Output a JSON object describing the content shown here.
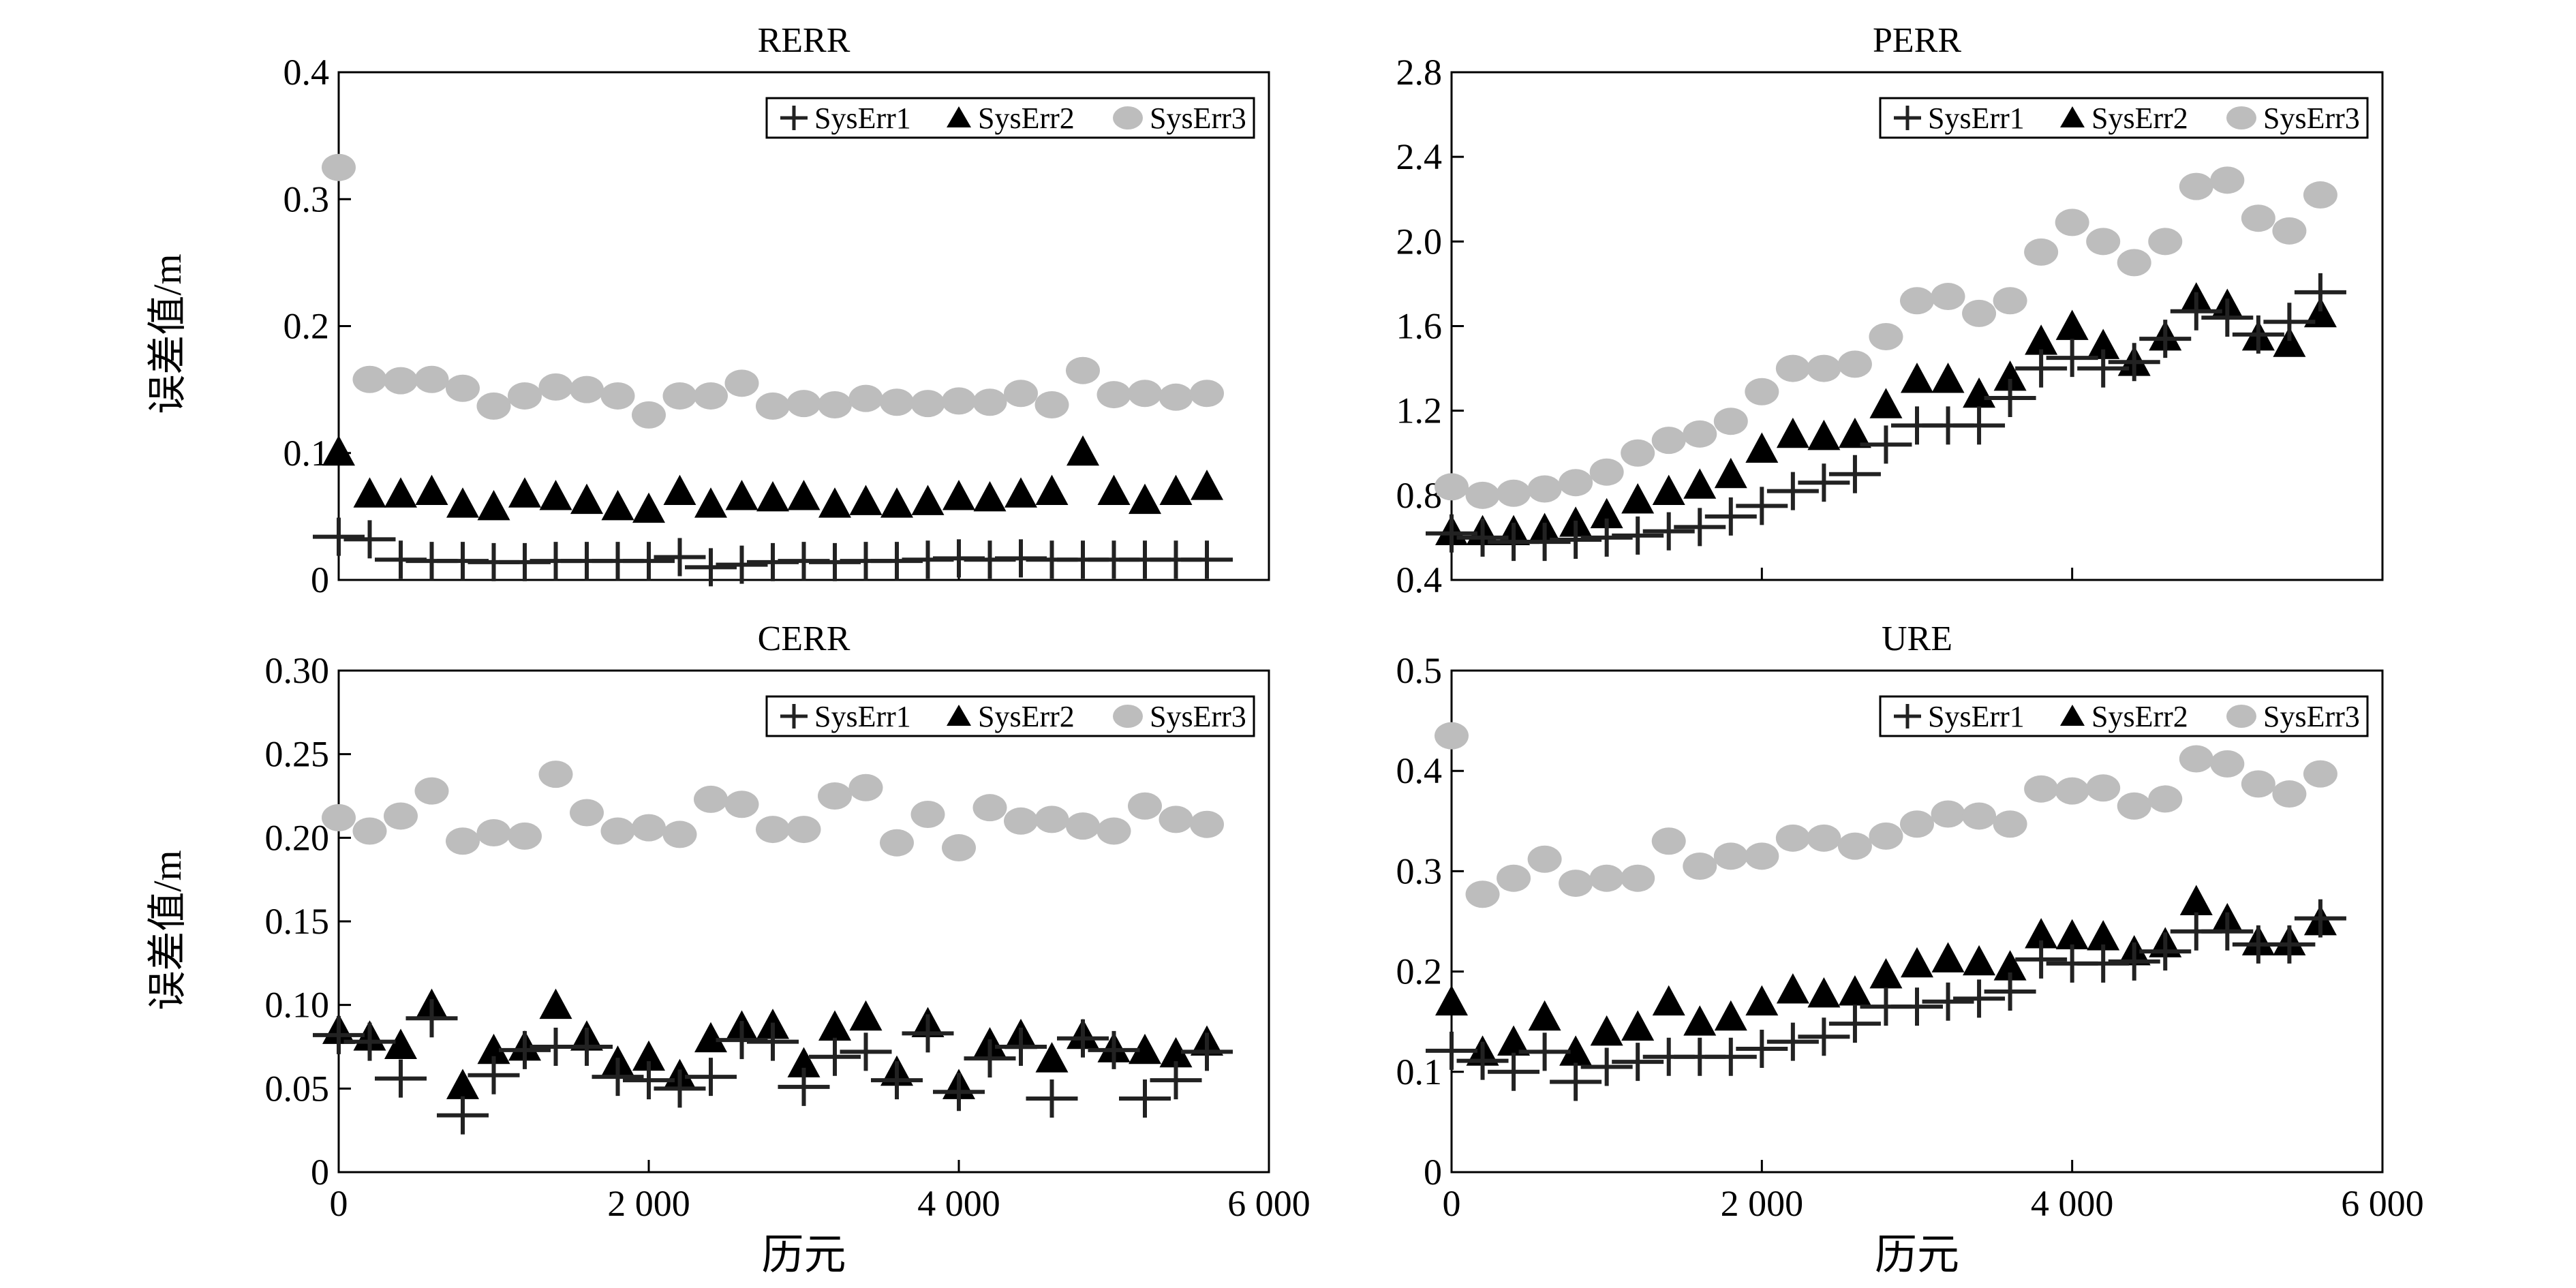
{
  "figure": {
    "ylabel": "误差值/m",
    "xlabel": "历元",
    "colors": {
      "sys1": "#222222",
      "sys2": "#000000",
      "sys3": "#bdbdbd"
    }
  },
  "chart_data": [
    {
      "id": "rerr",
      "type": "scatter",
      "title": "RERR",
      "xlabel": "",
      "ylabel": "误差值/m",
      "xlim": [
        0,
        6000
      ],
      "ylim": [
        0,
        0.4
      ],
      "xticks": [
        0,
        2000,
        4000,
        6000
      ],
      "xtick_labels": [
        "",
        "",
        "",
        ""
      ],
      "yticks": [
        0,
        0.1,
        0.2,
        0.3,
        0.4
      ],
      "ytick_labels": [
        "0",
        "0.1",
        "0.2",
        "0.3",
        "0.4"
      ],
      "legend": [
        "SysErr1",
        "SysErr2",
        "SysErr3"
      ],
      "x": [
        0,
        200,
        400,
        600,
        800,
        1000,
        1200,
        1400,
        1600,
        1800,
        2000,
        2200,
        2400,
        2600,
        2800,
        3000,
        3200,
        3400,
        3600,
        3800,
        4000,
        4200,
        4400,
        4600,
        4800,
        5000,
        5200,
        5400,
        5600
      ],
      "series": [
        {
          "name": "SysErr1",
          "marker": "plus",
          "values": [
            0.034,
            0.032,
            0.016,
            0.015,
            0.015,
            0.014,
            0.014,
            0.015,
            0.015,
            0.015,
            0.015,
            0.018,
            0.01,
            0.012,
            0.014,
            0.015,
            0.014,
            0.015,
            0.015,
            0.016,
            0.017,
            0.016,
            0.017,
            0.016,
            0.016,
            0.016,
            0.016,
            0.016,
            0.016
          ]
        },
        {
          "name": "SysErr2",
          "marker": "triangle",
          "values": [
            0.101,
            0.068,
            0.068,
            0.07,
            0.06,
            0.058,
            0.068,
            0.066,
            0.063,
            0.058,
            0.056,
            0.07,
            0.06,
            0.066,
            0.065,
            0.066,
            0.06,
            0.062,
            0.06,
            0.062,
            0.066,
            0.065,
            0.068,
            0.07,
            0.101,
            0.07,
            0.063,
            0.07,
            0.074
          ]
        },
        {
          "name": "SysErr3",
          "marker": "circle",
          "values": [
            0.325,
            0.158,
            0.157,
            0.158,
            0.151,
            0.137,
            0.145,
            0.152,
            0.15,
            0.145,
            0.13,
            0.145,
            0.145,
            0.155,
            0.137,
            0.139,
            0.138,
            0.143,
            0.14,
            0.139,
            0.141,
            0.14,
            0.147,
            0.138,
            0.165,
            0.146,
            0.147,
            0.144,
            0.147
          ]
        }
      ]
    },
    {
      "id": "perr",
      "type": "scatter",
      "title": "PERR",
      "xlabel": "",
      "ylabel": "",
      "xlim": [
        0,
        6000
      ],
      "ylim": [
        0.4,
        2.8
      ],
      "xticks": [
        0,
        2000,
        4000,
        6000
      ],
      "xtick_labels": [
        "",
        "",
        "",
        ""
      ],
      "yticks": [
        0.4,
        0.8,
        1.2,
        1.6,
        2.0,
        2.4,
        2.8
      ],
      "ytick_labels": [
        "0.4",
        "0.8",
        "1.2",
        "1.6",
        "2.0",
        "2.4",
        "2.8"
      ],
      "legend": [
        "SysErr1",
        "SysErr2",
        "SysErr3"
      ],
      "x": [
        0,
        200,
        400,
        600,
        800,
        1000,
        1200,
        1400,
        1600,
        1800,
        2000,
        2200,
        2400,
        2600,
        2800,
        3000,
        3200,
        3400,
        3600,
        3800,
        4000,
        4200,
        4400,
        4600,
        4800,
        5000,
        5200,
        5400,
        5600
      ],
      "series": [
        {
          "name": "SysErr1",
          "marker": "plus",
          "values": [
            0.62,
            0.6,
            0.58,
            0.58,
            0.59,
            0.6,
            0.61,
            0.63,
            0.65,
            0.7,
            0.75,
            0.82,
            0.86,
            0.9,
            1.04,
            1.13,
            1.13,
            1.13,
            1.26,
            1.4,
            1.45,
            1.4,
            1.43,
            1.54,
            1.67,
            1.64,
            1.56,
            1.62,
            1.76
          ]
        },
        {
          "name": "SysErr2",
          "marker": "triangle",
          "values": [
            0.63,
            0.63,
            0.63,
            0.64,
            0.67,
            0.71,
            0.78,
            0.82,
            0.85,
            0.9,
            1.02,
            1.09,
            1.08,
            1.09,
            1.23,
            1.35,
            1.35,
            1.28,
            1.36,
            1.53,
            1.6,
            1.51,
            1.43,
            1.55,
            1.73,
            1.7,
            1.55,
            1.52,
            1.66
          ]
        },
        {
          "name": "SysErr3",
          "marker": "circle",
          "values": [
            0.84,
            0.8,
            0.81,
            0.83,
            0.86,
            0.91,
            1.0,
            1.06,
            1.09,
            1.15,
            1.29,
            1.4,
            1.4,
            1.42,
            1.55,
            1.72,
            1.74,
            1.66,
            1.72,
            1.95,
            2.09,
            2.0,
            1.9,
            2.0,
            2.26,
            2.29,
            2.11,
            2.05,
            2.22
          ]
        }
      ]
    },
    {
      "id": "cerr",
      "type": "scatter",
      "title": "CERR",
      "xlabel": "历元",
      "ylabel": "误差值/m",
      "xlim": [
        0,
        6000
      ],
      "ylim": [
        0,
        0.3
      ],
      "xticks": [
        0,
        2000,
        4000,
        6000
      ],
      "xtick_labels": [
        "0",
        "2 000",
        "4 000",
        "6 000"
      ],
      "yticks": [
        0,
        0.05,
        0.1,
        0.15,
        0.2,
        0.25,
        0.3
      ],
      "ytick_labels": [
        "0",
        "0.05",
        "0.10",
        "0.15",
        "0.20",
        "0.25",
        "0.30"
      ],
      "legend": [
        "SysErr1",
        "SysErr2",
        "SysErr3"
      ],
      "x": [
        0,
        200,
        400,
        600,
        800,
        1000,
        1200,
        1400,
        1600,
        1800,
        2000,
        2200,
        2400,
        2600,
        2800,
        3000,
        3200,
        3400,
        3600,
        3800,
        4000,
        4200,
        4400,
        4600,
        4800,
        5000,
        5200,
        5400,
        5600
      ],
      "series": [
        {
          "name": "SysErr1",
          "marker": "plus",
          "values": [
            0.082,
            0.078,
            0.056,
            0.092,
            0.034,
            0.058,
            0.073,
            0.075,
            0.075,
            0.057,
            0.055,
            0.05,
            0.057,
            0.079,
            0.078,
            0.051,
            0.069,
            0.072,
            0.055,
            0.083,
            0.048,
            0.068,
            0.075,
            0.044,
            0.08,
            0.073,
            0.044,
            0.055,
            0.072
          ]
        },
        {
          "name": "SysErr2",
          "marker": "triangle",
          "values": [
            0.085,
            0.081,
            0.076,
            0.1,
            0.052,
            0.073,
            0.075,
            0.1,
            0.081,
            0.066,
            0.069,
            0.058,
            0.08,
            0.087,
            0.088,
            0.065,
            0.087,
            0.093,
            0.06,
            0.089,
            0.052,
            0.077,
            0.082,
            0.068,
            0.082,
            0.074,
            0.073,
            0.071,
            0.078
          ]
        },
        {
          "name": "SysErr3",
          "marker": "circle",
          "values": [
            0.212,
            0.204,
            0.213,
            0.228,
            0.198,
            0.203,
            0.201,
            0.238,
            0.215,
            0.204,
            0.206,
            0.202,
            0.223,
            0.22,
            0.205,
            0.205,
            0.225,
            0.23,
            0.197,
            0.214,
            0.194,
            0.218,
            0.21,
            0.211,
            0.207,
            0.204,
            0.219,
            0.211,
            0.208
          ]
        }
      ]
    },
    {
      "id": "ure",
      "type": "scatter",
      "title": "URE",
      "xlabel": "历元",
      "ylabel": "",
      "xlim": [
        0,
        6000
      ],
      "ylim": [
        0,
        0.5
      ],
      "xticks": [
        0,
        2000,
        4000,
        6000
      ],
      "xtick_labels": [
        "0",
        "2 000",
        "4 000",
        "6 000"
      ],
      "yticks": [
        0,
        0.1,
        0.2,
        0.3,
        0.4,
        0.5
      ],
      "ytick_labels": [
        "0",
        "0.1",
        "0.2",
        "0.3",
        "0.4",
        "0.5"
      ],
      "legend": [
        "SysErr1",
        "SysErr2",
        "SysErr3"
      ],
      "x": [
        0,
        200,
        400,
        600,
        800,
        1000,
        1200,
        1400,
        1600,
        1800,
        2000,
        2200,
        2400,
        2600,
        2800,
        3000,
        3200,
        3400,
        3600,
        3800,
        4000,
        4200,
        4400,
        4600,
        4800,
        5000,
        5200,
        5400,
        5600
      ],
      "series": [
        {
          "name": "SysErr1",
          "marker": "plus",
          "values": [
            0.121,
            0.111,
            0.1,
            0.12,
            0.09,
            0.105,
            0.11,
            0.115,
            0.115,
            0.115,
            0.123,
            0.13,
            0.135,
            0.148,
            0.165,
            0.165,
            0.17,
            0.173,
            0.18,
            0.212,
            0.208,
            0.208,
            0.21,
            0.22,
            0.24,
            0.24,
            0.227,
            0.227,
            0.253
          ]
        },
        {
          "name": "SysErr2",
          "marker": "triangle",
          "values": [
            0.17,
            0.12,
            0.13,
            0.155,
            0.12,
            0.14,
            0.145,
            0.17,
            0.15,
            0.155,
            0.17,
            0.182,
            0.178,
            0.18,
            0.197,
            0.208,
            0.213,
            0.21,
            0.205,
            0.237,
            0.236,
            0.235,
            0.22,
            0.228,
            0.27,
            0.252,
            0.23,
            0.23,
            0.25
          ]
        },
        {
          "name": "SysErr3",
          "marker": "circle",
          "values": [
            0.435,
            0.277,
            0.293,
            0.312,
            0.288,
            0.293,
            0.293,
            0.33,
            0.305,
            0.315,
            0.315,
            0.333,
            0.333,
            0.325,
            0.335,
            0.347,
            0.357,
            0.355,
            0.347,
            0.382,
            0.38,
            0.383,
            0.365,
            0.372,
            0.412,
            0.407,
            0.387,
            0.377,
            0.397
          ]
        }
      ]
    }
  ]
}
